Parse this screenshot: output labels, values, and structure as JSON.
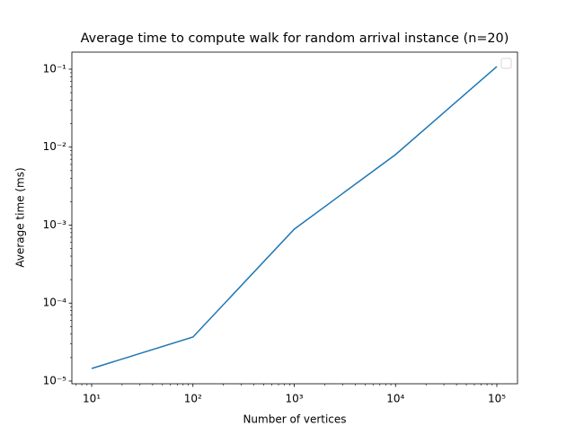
{
  "chart_data": {
    "type": "line",
    "title": "Average time to compute walk for random arrival instance (n=20)",
    "x_label": "Number of vertices",
    "y_label": "Average time (ms)",
    "x": [
      10,
      100,
      1000,
      10000,
      100000
    ],
    "series": [
      {
        "color": "#1f77b4",
        "values": [
          1.45e-05,
          3.67e-05,
          0.000887,
          0.00803,
          0.108
        ]
      }
    ],
    "x_scale": "log",
    "y_scale": "log",
    "xlim": [
      6.38,
      160000
    ],
    "ylim": [
      9.23e-06,
      0.1655
    ],
    "xticks": [
      {
        "value": 10,
        "label": "10¹"
      },
      {
        "value": 100,
        "label": "10²"
      },
      {
        "value": 1000,
        "label": "10³"
      },
      {
        "value": 10000,
        "label": "10⁴"
      },
      {
        "value": 100000,
        "label": "10⁵"
      }
    ],
    "yticks": [
      {
        "value": 1e-05,
        "label": "10⁻⁵"
      },
      {
        "value": 0.0001,
        "label": "10⁻⁴"
      },
      {
        "value": 0.001,
        "label": "10⁻³"
      },
      {
        "value": 0.01,
        "label": "10⁻²"
      },
      {
        "value": 0.1,
        "label": "10⁻¹"
      }
    ],
    "legend": "upper right"
  }
}
